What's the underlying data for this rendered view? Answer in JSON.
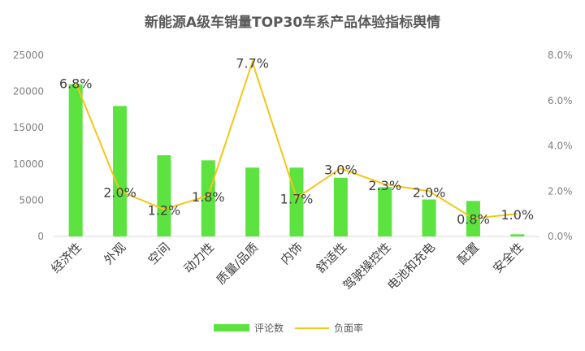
{
  "chart_data": {
    "type": "bar+line",
    "title": "新能源A级车销量TOP30车系产品体验指标舆情",
    "categories": [
      "经济性",
      "外观",
      "空间",
      "动力性",
      "质量/品质",
      "内饰",
      "舒适性",
      "驾驶操控性",
      "电池和充电",
      "配置",
      "安全性"
    ],
    "series": [
      {
        "name": "评论数",
        "type": "bar",
        "axis": "left",
        "color": "#5ce33f",
        "values": [
          21000,
          18000,
          11200,
          10500,
          9500,
          9500,
          8100,
          6800,
          5100,
          4900,
          300
        ]
      },
      {
        "name": "负面率",
        "type": "line",
        "axis": "right",
        "color": "#f5c518",
        "values": [
          6.8,
          2.0,
          1.2,
          1.8,
          7.7,
          1.7,
          3.0,
          2.3,
          2.0,
          0.8,
          1.0
        ],
        "labels": [
          "6.8%",
          "2.0%",
          "1.2%",
          "1.8%",
          "7.7%",
          "1.7%",
          "3.0%",
          "2.3%",
          "2.0%",
          "0.8%",
          "1.0%"
        ]
      }
    ],
    "y_left": {
      "min": 0,
      "max": 25000,
      "ticks": [
        "0",
        "5000",
        "10000",
        "15000",
        "20000",
        "25000"
      ]
    },
    "y_right": {
      "min": 0,
      "max": 8,
      "ticks": [
        "0.0%",
        "2.0%",
        "4.0%",
        "6.0%",
        "8.0%"
      ]
    },
    "legend": {
      "position": "bottom",
      "items": [
        "评论数",
        "负面率"
      ]
    },
    "grid": false
  }
}
